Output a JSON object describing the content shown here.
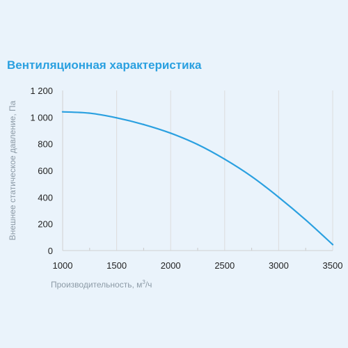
{
  "chart_data": {
    "type": "line",
    "title": "Вентиляционная характеристика",
    "xlabel_main": "Производительность, м",
    "xlabel_sup": "3",
    "xlabel_end": "/ч",
    "ylabel": "Внешнее статическое давление, Па",
    "xlim": [
      1000,
      3500
    ],
    "ylim": [
      0,
      1200
    ],
    "x_ticks": [
      1000,
      1500,
      2000,
      2500,
      3000,
      3500
    ],
    "y_ticks": [
      0,
      200,
      400,
      600,
      800,
      1000,
      1200
    ],
    "x_tick_labels": [
      "1000",
      "1500",
      "2000",
      "2500",
      "3000",
      "3500"
    ],
    "y_tick_labels": [
      "0",
      "200",
      "400",
      "600",
      "800",
      "1 000",
      "1 200"
    ],
    "grid": "vertical",
    "series": [
      {
        "color": "#2aa0e0",
        "x": [
          1000,
          1250,
          1500,
          1750,
          2000,
          2250,
          2500,
          2750,
          3000,
          3250,
          3500
        ],
        "y": [
          1040,
          1030,
          995,
          945,
          880,
          795,
          685,
          555,
          400,
          230,
          45
        ]
      }
    ]
  }
}
